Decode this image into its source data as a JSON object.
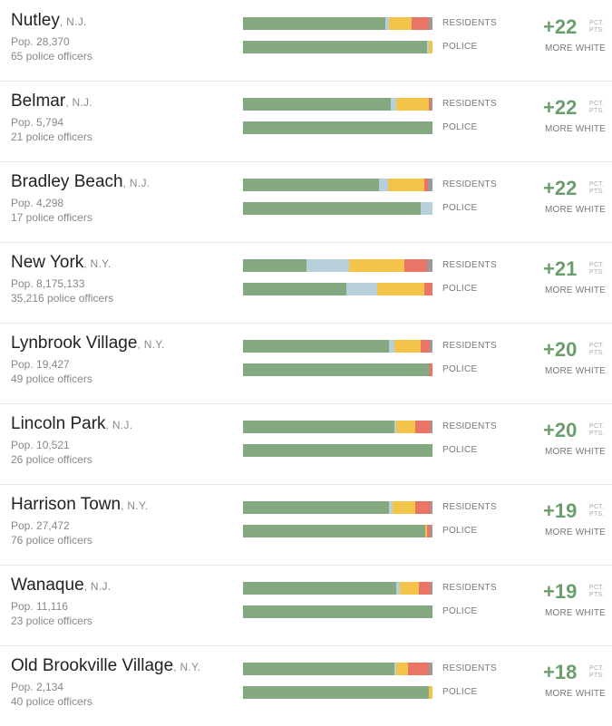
{
  "colors": {
    "white": "#84a880",
    "asian": "#b7cfdb",
    "hispanic": "#f4c34a",
    "black": "#ea7566",
    "other": "#9a9a9a",
    "difference": "#6a9e6c"
  },
  "labels": {
    "residents": "RESIDENTS",
    "police": "POLICE",
    "units": "PCT. PTS.",
    "note": "MORE WHITE"
  },
  "chart_data": {
    "type": "bar",
    "segment_order": [
      "white",
      "asian",
      "hispanic",
      "black",
      "other"
    ],
    "rows": [
      {
        "city": "Nutley",
        "state": ", N.J.",
        "population": "Pop. 28,370",
        "officers": "65 police officers",
        "residents": [
          75,
          2,
          12,
          9,
          2
        ],
        "police": [
          97,
          1,
          2,
          0,
          0
        ],
        "difference": "+22"
      },
      {
        "city": "Belmar",
        "state": ", N.J.",
        "population": "Pop. 5,794",
        "officers": "21 police officers",
        "residents": [
          78,
          3,
          17,
          1,
          1
        ],
        "police": [
          100,
          0,
          0,
          0,
          0
        ],
        "difference": "+22"
      },
      {
        "city": "Bradley Beach",
        "state": ", N.J.",
        "population": "Pop. 4,298",
        "officers": "17 police officers",
        "residents": [
          72,
          5,
          19,
          2,
          2
        ],
        "police": [
          94,
          6,
          0,
          0,
          0
        ],
        "difference": "+22"
      },
      {
        "city": "New York",
        "state": ", N.Y.",
        "population": "Pop. 8,175,133",
        "officers": "35,216 police officers",
        "residents": [
          33.5,
          22.5,
          29,
          12,
          3
        ],
        "police": [
          54.5,
          16.5,
          25,
          4,
          0
        ],
        "difference": "+21"
      },
      {
        "city": "Lynbrook Village",
        "state": ", N.Y.",
        "population": "Pop. 19,427",
        "officers": "49 police officers",
        "residents": [
          77,
          3,
          14,
          5,
          1
        ],
        "police": [
          98,
          0,
          0,
          2,
          0
        ],
        "difference": "+20"
      },
      {
        "city": "Lincoln Park",
        "state": ", N.J.",
        "population": "Pop. 10,521",
        "officers": "26 police officers",
        "residents": [
          80,
          1,
          10,
          8,
          1
        ],
        "police": [
          100,
          0,
          0,
          0,
          0
        ],
        "difference": "+20"
      },
      {
        "city": "Harrison Town",
        "state": ", N.Y.",
        "population": "Pop. 27,472",
        "officers": "76 police officers",
        "residents": [
          77,
          2,
          12,
          8,
          1
        ],
        "police": [
          96,
          0,
          1,
          2,
          1
        ],
        "difference": "+19"
      },
      {
        "city": "Wanaque",
        "state": ", N.J.",
        "population": "Pop. 11,116",
        "officers": "23 police officers",
        "residents": [
          81,
          2,
          10,
          6,
          1
        ],
        "police": [
          100,
          0,
          0,
          0,
          0
        ],
        "difference": "+19"
      },
      {
        "city": "Old Brookville Village",
        "state": ", N.Y.",
        "population": "Pop. 2,134",
        "officers": "40 police officers",
        "residents": [
          80,
          1,
          6,
          11,
          2
        ],
        "police": [
          98,
          0,
          2,
          0,
          0
        ],
        "difference": "+18"
      }
    ]
  }
}
